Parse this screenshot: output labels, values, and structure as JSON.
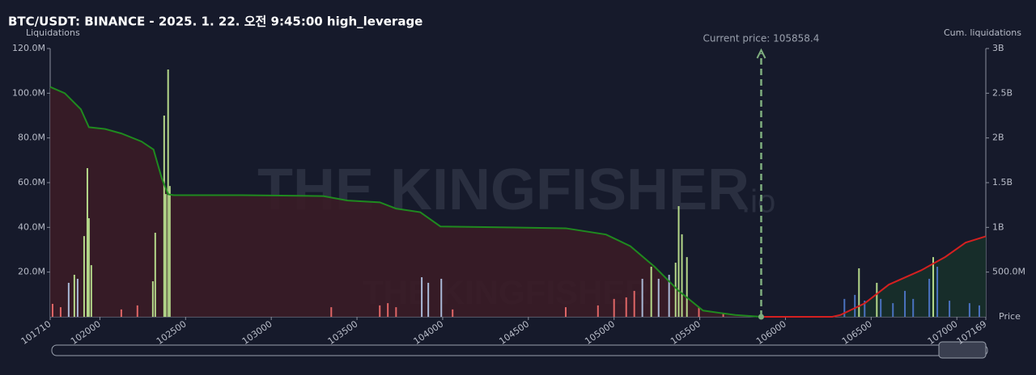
{
  "chart_data": {
    "type": "liquidation-map",
    "title": "BTC/USDT: BINANCE - 2025. 1. 22. 오전 9:45:00 high_leverage",
    "y_label": "Liquidations",
    "y2_label": "Cum. liquidations",
    "x_label": "Price",
    "watermark": "THE KINGFISHER",
    "watermark_suffix": ".io",
    "current_price": 105858.4,
    "current_price_label": "Current price: 105858.4",
    "xlim": [
      101710,
      107169
    ],
    "xticks": [
      101710,
      102000,
      102500,
      103000,
      103500,
      104000,
      104500,
      105000,
      105500,
      106000,
      106500,
      107000,
      107169
    ],
    "ylim": [
      0,
      120000000
    ],
    "yticks": [
      {
        "value": 20000000,
        "label": "20.0M"
      },
      {
        "value": 40000000,
        "label": "40.0M"
      },
      {
        "value": 60000000,
        "label": "60.0M"
      },
      {
        "value": 80000000,
        "label": "80.0M"
      },
      {
        "value": 100000000,
        "label": "100.0M"
      },
      {
        "value": 120000000,
        "label": "120.0M"
      }
    ],
    "y2lim": [
      0,
      3000000000
    ],
    "y2ticks": [
      {
        "value": 500000000,
        "label": "500.0M"
      },
      {
        "value": 1000000000,
        "label": "1B"
      },
      {
        "value": 1500000000,
        "label": "1.5B"
      },
      {
        "value": 2000000000,
        "label": "2B"
      },
      {
        "value": 2500000000,
        "label": "2.5B"
      },
      {
        "value": 3000000000,
        "label": "3B"
      }
    ],
    "bar_groups": [
      {
        "color": "#e06666",
        "x": [
          101724,
          101771,
          102125,
          102219,
          103350,
          103633,
          103680,
          103728,
          104058,
          104718,
          104906,
          105000,
          105071,
          105118,
          105495,
          105637
        ],
        "values": [
          5800000,
          4300000,
          3300000,
          5100000,
          4300000,
          5100000,
          6100000,
          4300000,
          3300000,
          4300000,
          5100000,
          8000000,
          8700000,
          11600000,
          4300000,
          1400000
        ]
      },
      {
        "color": "#a9b8d6",
        "x": [
          101818,
          101870,
          103878,
          103916,
          103992,
          105165,
          105260,
          105321
        ],
        "values": [
          15200000,
          17000000,
          17700000,
          15200000,
          17000000,
          17000000,
          17000000,
          18800000
        ]
      },
      {
        "color": "#4a72c0",
        "x": [
          106344,
          106405,
          106462,
          106556,
          106627,
          106697,
          106745,
          106839,
          106886,
          106957,
          107074,
          107131
        ],
        "values": [
          8000000,
          9800000,
          7200000,
          8000000,
          6100000,
          11600000,
          8000000,
          17000000,
          22400000,
          7200000,
          6100000,
          5100000
        ]
      },
      {
        "color": "#b5d98a",
        "x": [
          101851,
          101908,
          101927,
          101936,
          101950,
          102309,
          102323,
          102375,
          102384,
          102398,
          102408,
          105217,
          105359,
          105377,
          105396,
          105425,
          106429,
          106533,
          106862
        ],
        "values": [
          18800000,
          36100000,
          66500000,
          44100000,
          23100000,
          15900000,
          37600000,
          90000000,
          54900000,
          110600000,
          58500000,
          22400000,
          24200000,
          49500000,
          36900000,
          26700000,
          21700000,
          15200000,
          26700000
        ]
      }
    ],
    "cum_lines": [
      {
        "color": "#1f8a1f",
        "fill": "#3a1c26",
        "x": [
          101710,
          101795,
          101889,
          101936,
          102031,
          102125,
          102243,
          102313,
          102361,
          102398,
          102431,
          102832,
          103303,
          103445,
          103633,
          103728,
          103869,
          103987,
          104718,
          104953,
          105095,
          105236,
          105377,
          105519,
          105707,
          105858
        ],
        "values": [
          2570000000,
          2500000000,
          2320000000,
          2120000000,
          2100000000,
          2050000000,
          1960000000,
          1870000000,
          1550000000,
          1370000000,
          1360000000,
          1360000000,
          1350000000,
          1300000000,
          1280000000,
          1210000000,
          1170000000,
          1010000000,
          990000000,
          920000000,
          790000000,
          560000000,
          290000000,
          70000000,
          20000000,
          0
        ]
      },
      {
        "color": "#d42020",
        "fill": "#17302a",
        "x": [
          105858,
          106273,
          106320,
          106462,
          106603,
          106792,
          106933,
          107051,
          107169
        ],
        "values": [
          0,
          0,
          20000000,
          150000000,
          360000000,
          520000000,
          670000000,
          830000000,
          900000000
        ]
      }
    ]
  }
}
